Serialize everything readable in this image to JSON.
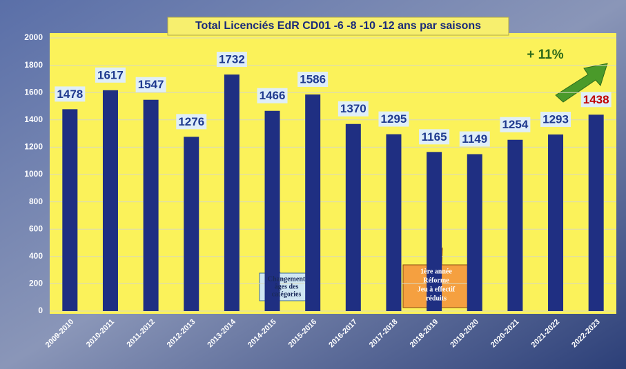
{
  "chart_data": {
    "type": "bar",
    "title": "Total Licenciés EdR CD01 -6 -8 -10 -12 ans par saisons",
    "categories": [
      "2009-2010",
      "2010-2011",
      "2011-2012",
      "2012-2013",
      "2013-2014",
      "2014-2015",
      "2015-2016",
      "2016-2017",
      "2017-2018",
      "2018-2019",
      "2019-2020",
      "2020-2021",
      "2021-2022",
      "2022-2023"
    ],
    "values": [
      1478,
      1617,
      1547,
      1276,
      1732,
      1466,
      1586,
      1370,
      1295,
      1165,
      1149,
      1254,
      1293,
      1438
    ],
    "color": "#1f2f82",
    "label_colors": [
      "#1f3a8f",
      "#1f3a8f",
      "#1f3a8f",
      "#1f3a8f",
      "#1f3a8f",
      "#1f3a8f",
      "#1f3a8f",
      "#1f3a8f",
      "#1f3a8f",
      "#1f3a8f",
      "#1f3a8f",
      "#1f3a8f",
      "#1f3a8f",
      "#c00000"
    ],
    "ylim": [
      0,
      2000
    ],
    "yticks": [
      0,
      200,
      400,
      600,
      800,
      1000,
      1200,
      1400,
      1600,
      1800,
      2000
    ],
    "grid": true,
    "annotations": {
      "growth": "+ 11%",
      "callout_1": [
        "Changement",
        "âges des",
        "catégories"
      ],
      "callout_2": [
        "1ère année",
        "Réforme",
        "Jeu à effectif",
        "réduits"
      ]
    }
  }
}
